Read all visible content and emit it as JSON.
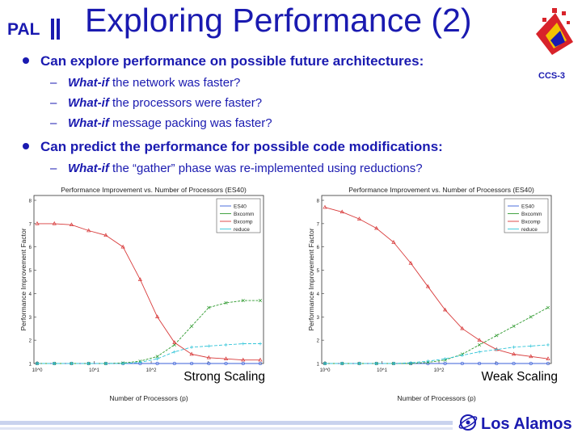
{
  "title": "Exploring Performance (2)",
  "logos": {
    "pal": "PAL",
    "corner_label": "CCS-3",
    "org": "Los Alamos"
  },
  "bullets": [
    {
      "text": "Can explore performance on possible future architectures:",
      "subs": [
        {
          "em": "What-if",
          "rest": " the network was faster?"
        },
        {
          "em": "What-if",
          "rest": " the processors were faster?"
        },
        {
          "em": "What-if",
          "rest": " message packing was faster?"
        }
      ]
    },
    {
      "text": "Can predict the performance for possible code modifications:",
      "subs": [
        {
          "em": "What-if",
          "rest": " the “gather” phase was re-implemented using reductions?"
        }
      ]
    }
  ],
  "colors": {
    "title": "#1a1ab0",
    "es40": "#3a5fd8",
    "bxcomm": "#2f9a2f",
    "bxcomp": "#d83a3a",
    "reduce": "#2fc4d8"
  },
  "chart_data": [
    {
      "type": "line",
      "title": "Performance Improvement vs. Number of Processors (ES40)",
      "xlabel": "Number of Processors (p)",
      "ylabel": "Performance Improvement Factor",
      "x_scale": "log",
      "x": [
        1,
        2,
        4,
        8,
        16,
        32,
        64,
        128,
        256,
        512,
        1024,
        2048,
        4096,
        8192
      ],
      "ylim": [
        1,
        8
      ],
      "yticks": [
        "1",
        "2",
        "3",
        "4",
        "5",
        "6",
        "7",
        "8"
      ],
      "xticks": [
        "10^0",
        "10^1",
        "10^2",
        "10^3"
      ],
      "caption": "Strong Scaling",
      "legend": "top-right",
      "series": [
        {
          "name": "ES40",
          "values": [
            1,
            1,
            1,
            1,
            1,
            1,
            1,
            1,
            1,
            1,
            1,
            1,
            1,
            1
          ]
        },
        {
          "name": "Bxcomm",
          "values": [
            1,
            1,
            1,
            1,
            1,
            1.02,
            1.1,
            1.3,
            1.8,
            2.6,
            3.4,
            3.6,
            3.7,
            3.7
          ]
        },
        {
          "name": "Bxcomp",
          "values": [
            7,
            7,
            6.95,
            6.7,
            6.5,
            6.0,
            4.6,
            3.0,
            1.9,
            1.4,
            1.25,
            1.2,
            1.15,
            1.15
          ]
        },
        {
          "name": "reduce",
          "values": [
            1,
            1,
            1,
            1,
            1,
            1,
            1.05,
            1.2,
            1.5,
            1.7,
            1.75,
            1.8,
            1.85,
            1.85
          ]
        }
      ]
    },
    {
      "type": "line",
      "title": "Performance Improvement vs. Number of Processors (ES40)",
      "xlabel": "Number of Processors (p)",
      "ylabel": "Performance Improvement Factor",
      "x_scale": "log",
      "x": [
        1,
        2,
        4,
        8,
        16,
        32,
        64,
        128,
        256,
        512,
        1024,
        2048,
        4096,
        8192
      ],
      "ylim": [
        1,
        8
      ],
      "yticks": [
        "1",
        "2",
        "3",
        "4",
        "5",
        "6",
        "7",
        "8"
      ],
      "xticks": [
        "10^0",
        "10^1",
        "10^2",
        "10^3"
      ],
      "caption": "Weak Scaling",
      "legend": "top-right",
      "series": [
        {
          "name": "ES40",
          "values": [
            1,
            1,
            1,
            1,
            1,
            1,
            1,
            1,
            1,
            1,
            1,
            1,
            1,
            1
          ]
        },
        {
          "name": "Bxcomm",
          "values": [
            1,
            1,
            1,
            1,
            1,
            1,
            1.05,
            1.15,
            1.4,
            1.8,
            2.2,
            2.6,
            3.0,
            3.4
          ]
        },
        {
          "name": "Bxcomp",
          "values": [
            7.7,
            7.5,
            7.2,
            6.8,
            6.2,
            5.3,
            4.3,
            3.3,
            2.5,
            2.0,
            1.6,
            1.4,
            1.3,
            1.2
          ]
        },
        {
          "name": "reduce",
          "values": [
            1,
            1,
            1,
            1,
            1,
            1.03,
            1.1,
            1.2,
            1.35,
            1.5,
            1.6,
            1.7,
            1.75,
            1.8
          ]
        }
      ]
    }
  ]
}
